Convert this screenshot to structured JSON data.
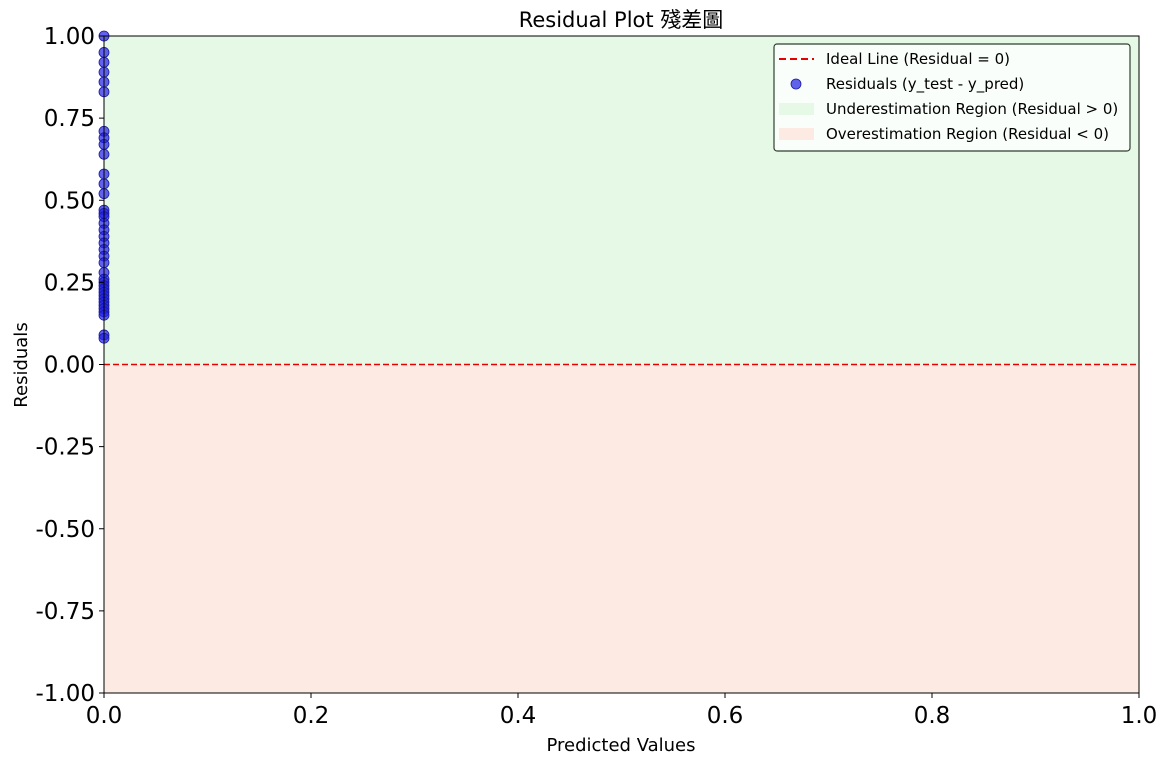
{
  "chart_data": {
    "type": "scatter",
    "title": "Residual Plot 殘差圖",
    "xlabel": "Predicted Values",
    "ylabel": "Residuals",
    "xlim": [
      0.0,
      1.0
    ],
    "ylim": [
      -1.0,
      1.0
    ],
    "x_ticks": [
      0.0,
      0.2,
      0.4,
      0.6,
      0.8,
      1.0
    ],
    "x_tick_labels": [
      "0.0",
      "0.2",
      "0.4",
      "0.6",
      "0.8",
      "1.0"
    ],
    "y_ticks": [
      1.0,
      0.75,
      0.5,
      0.25,
      0.0,
      -0.25,
      -0.5,
      -0.75,
      -1.0
    ],
    "y_tick_labels": [
      "1.00",
      "0.75",
      "0.50",
      "0.25",
      "0.00",
      "-0.25",
      "-0.50",
      "-0.75",
      "-1.00"
    ],
    "grid": false,
    "legend_position": "top-right",
    "series": [
      {
        "name": "Residuals (y_test - y_pred)",
        "kind": "scatter",
        "color": "#1f1fe6",
        "x": [
          0,
          0,
          0,
          0,
          0,
          0,
          0,
          0,
          0,
          0,
          0,
          0,
          0,
          0,
          0,
          0,
          0,
          0,
          0,
          0,
          0,
          0,
          0,
          0,
          0,
          0,
          0,
          0,
          0,
          0,
          0,
          0,
          0,
          0,
          0,
          0,
          0,
          0
        ],
        "y": [
          1.0,
          0.95,
          0.92,
          0.89,
          0.86,
          0.83,
          0.71,
          0.69,
          0.67,
          0.64,
          0.58,
          0.55,
          0.52,
          0.47,
          0.46,
          0.45,
          0.43,
          0.41,
          0.39,
          0.37,
          0.35,
          0.33,
          0.31,
          0.28,
          0.26,
          0.25,
          0.24,
          0.23,
          0.22,
          0.21,
          0.2,
          0.19,
          0.18,
          0.17,
          0.16,
          0.15,
          0.09,
          0.08
        ]
      }
    ],
    "reference_line": {
      "name": "Ideal Line (Residual = 0)",
      "y": 0,
      "color": "#e60000",
      "style": "dashed"
    },
    "regions": [
      {
        "name": "Underestimation Region (Residual > 0)",
        "from": 0,
        "to": 1.0,
        "color": "#e6f9e6"
      },
      {
        "name": "Overestimation Region (Residual < 0)",
        "from": -1.0,
        "to": 0,
        "color": "#fdebe3"
      }
    ]
  }
}
